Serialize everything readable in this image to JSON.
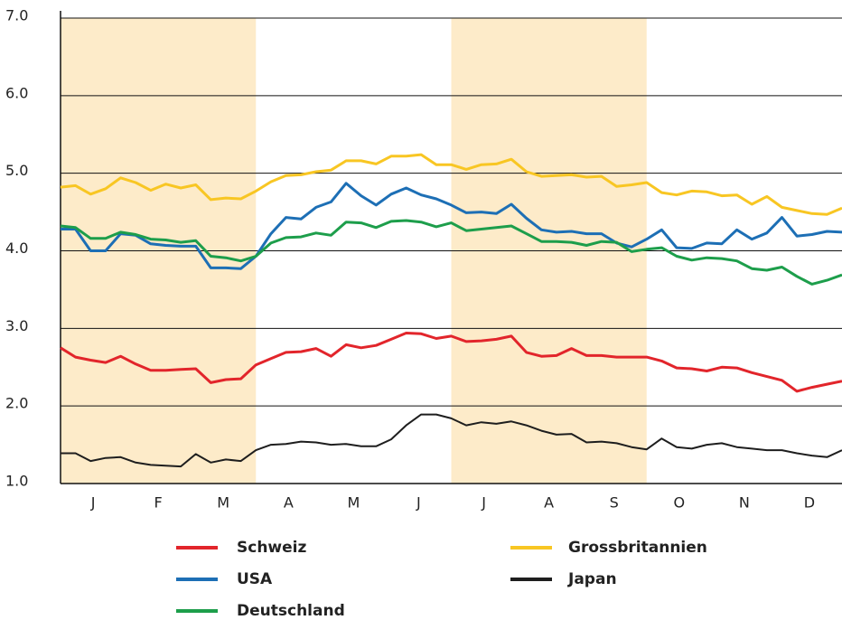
{
  "chart_data": {
    "type": "line",
    "x": [
      0,
      1,
      2,
      3,
      4,
      5,
      6,
      7,
      8,
      9,
      10,
      11,
      12,
      13,
      14,
      15,
      16,
      17,
      18,
      19,
      20,
      21,
      22,
      23,
      24,
      25,
      26,
      27,
      28,
      29,
      30,
      31,
      32,
      33,
      34,
      35,
      36,
      37,
      38,
      39,
      40,
      41,
      42,
      43,
      44,
      45,
      46,
      47,
      48,
      49,
      50,
      51,
      52
    ],
    "xlim": [
      0,
      52
    ],
    "xticks": [
      {
        "value": 2.17,
        "label": "J"
      },
      {
        "value": 6.5,
        "label": "F"
      },
      {
        "value": 10.83,
        "label": "M"
      },
      {
        "value": 15.17,
        "label": "A"
      },
      {
        "value": 19.5,
        "label": "M"
      },
      {
        "value": 23.83,
        "label": "J"
      },
      {
        "value": 28.17,
        "label": "J"
      },
      {
        "value": 32.5,
        "label": "A"
      },
      {
        "value": 36.83,
        "label": "S"
      },
      {
        "value": 41.17,
        "label": "O"
      },
      {
        "value": 45.5,
        "label": "N"
      },
      {
        "value": 49.83,
        "label": "D"
      }
    ],
    "ylim": [
      1,
      7
    ],
    "yticks": [
      {
        "value": 1,
        "label": "1.0"
      },
      {
        "value": 2,
        "label": "2.0"
      },
      {
        "value": 3,
        "label": "3.0"
      },
      {
        "value": 4,
        "label": "4.0"
      },
      {
        "value": 5,
        "label": "5.0"
      },
      {
        "value": 6,
        "label": "6.0"
      },
      {
        "value": 7,
        "label": "7.0"
      }
    ],
    "grid": true,
    "shaded_spans": [
      [
        0,
        13
      ],
      [
        26,
        39
      ]
    ],
    "shade_color": "#fdebc9",
    "series": [
      {
        "name": "Schweiz",
        "color": "#e2252b",
        "values": [
          2.75,
          2.63,
          2.59,
          2.56,
          2.64,
          2.54,
          2.46,
          2.46,
          2.47,
          2.48,
          2.3,
          2.34,
          2.35,
          2.53,
          2.61,
          2.69,
          2.7,
          2.74,
          2.64,
          2.79,
          2.75,
          2.78,
          2.86,
          2.94,
          2.93,
          2.87,
          2.9,
          2.83,
          2.84,
          2.86,
          2.9,
          2.69,
          2.64,
          2.65,
          2.74,
          2.65,
          2.65,
          2.63,
          2.63,
          2.63,
          2.58,
          2.49,
          2.48,
          2.45,
          2.5,
          2.49,
          2.43,
          2.38,
          2.33,
          2.19,
          2.24,
          2.28,
          2.32
        ]
      },
      {
        "name": "USA",
        "color": "#1d6fb5",
        "values": [
          4.28,
          4.28,
          4.0,
          4.0,
          4.22,
          4.2,
          4.09,
          4.07,
          4.06,
          4.06,
          3.78,
          3.78,
          3.77,
          3.93,
          4.22,
          4.43,
          4.41,
          4.56,
          4.63,
          4.87,
          4.71,
          4.59,
          4.73,
          4.81,
          4.72,
          4.67,
          4.59,
          4.49,
          4.5,
          4.48,
          4.6,
          4.42,
          4.27,
          4.24,
          4.25,
          4.22,
          4.22,
          4.1,
          4.05,
          4.15,
          4.27,
          4.04,
          4.03,
          4.1,
          4.09,
          4.27,
          4.15,
          4.23,
          4.43,
          4.19,
          4.21,
          4.25,
          4.24
        ]
      },
      {
        "name": "Deutschland",
        "color": "#1d9e4b",
        "values": [
          4.32,
          4.3,
          4.16,
          4.16,
          4.24,
          4.21,
          4.15,
          4.14,
          4.11,
          4.13,
          3.93,
          3.91,
          3.87,
          3.93,
          4.1,
          4.17,
          4.18,
          4.23,
          4.2,
          4.37,
          4.36,
          4.3,
          4.38,
          4.39,
          4.37,
          4.31,
          4.36,
          4.26,
          4.28,
          4.3,
          4.32,
          4.22,
          4.12,
          4.12,
          4.11,
          4.07,
          4.12,
          4.11,
          3.99,
          4.02,
          4.04,
          3.93,
          3.88,
          3.91,
          3.9,
          3.87,
          3.77,
          3.75,
          3.79,
          3.67,
          3.57,
          3.62,
          3.69
        ]
      },
      {
        "name": "Grossbritannien",
        "color": "#f8c623",
        "values": [
          4.82,
          4.84,
          4.73,
          4.8,
          4.94,
          4.88,
          4.78,
          4.86,
          4.81,
          4.85,
          4.66,
          4.68,
          4.67,
          4.77,
          4.89,
          4.97,
          4.98,
          5.02,
          5.04,
          5.16,
          5.16,
          5.12,
          5.22,
          5.22,
          5.24,
          5.11,
          5.11,
          5.05,
          5.11,
          5.12,
          5.18,
          5.02,
          4.96,
          4.97,
          4.98,
          4.95,
          4.96,
          4.83,
          4.85,
          4.88,
          4.75,
          4.72,
          4.77,
          4.76,
          4.71,
          4.72,
          4.6,
          4.7,
          4.56,
          4.52,
          4.48,
          4.47,
          4.55
        ]
      },
      {
        "name": "Japan",
        "color": "#1e1e1e",
        "values": [
          1.39,
          1.39,
          1.29,
          1.33,
          1.34,
          1.27,
          1.24,
          1.23,
          1.22,
          1.38,
          1.27,
          1.31,
          1.29,
          1.43,
          1.5,
          1.51,
          1.54,
          1.53,
          1.5,
          1.51,
          1.48,
          1.48,
          1.57,
          1.75,
          1.89,
          1.89,
          1.84,
          1.75,
          1.79,
          1.77,
          1.8,
          1.75,
          1.68,
          1.63,
          1.64,
          1.53,
          1.54,
          1.52,
          1.47,
          1.44,
          1.58,
          1.47,
          1.45,
          1.5,
          1.52,
          1.47,
          1.45,
          1.43,
          1.43,
          1.39,
          1.36,
          1.34,
          1.43
        ]
      }
    ]
  }
}
